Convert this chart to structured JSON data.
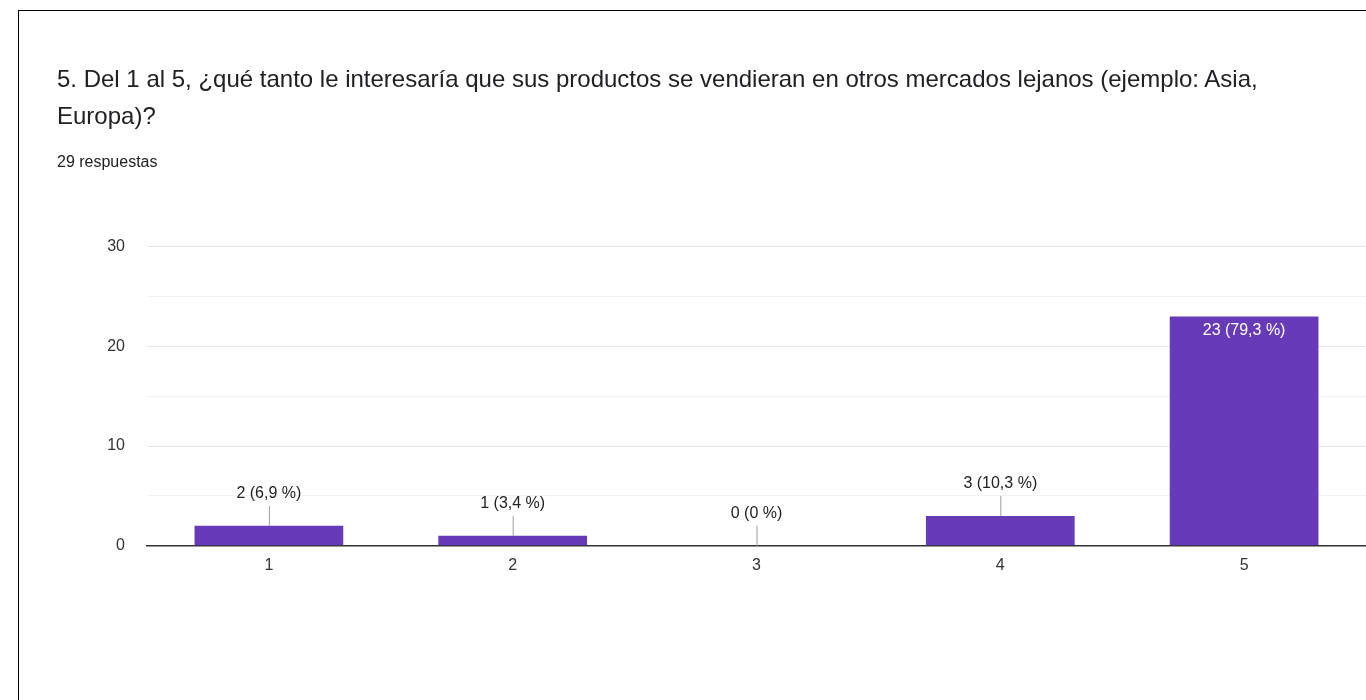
{
  "chart_data": {
    "type": "bar",
    "title": "5. Del 1 al 5, ¿qué tanto le interesaría que sus productos se vendieran en otros mercados lejanos (ejemplo: Asia, Europa)?",
    "subtitle": "29 respuestas",
    "categories": [
      "1",
      "2",
      "3",
      "4",
      "5"
    ],
    "values": [
      2,
      1,
      0,
      3,
      23
    ],
    "value_labels": [
      "2 (6,9 %)",
      "1 (3,4 %)",
      "0 (0 %)",
      "3 (10,3 %)",
      "23 (79,3 %)"
    ],
    "color": "#673ab7",
    "ylim": [
      0,
      30
    ],
    "yticks": [
      0,
      {
        "value": 5,
        "label": null
      },
      10,
      {
        "value": 15,
        "label": null
      },
      20,
      {
        "value": 25,
        "label": null
      },
      30
    ],
    "grid": "y",
    "legend": false
  }
}
